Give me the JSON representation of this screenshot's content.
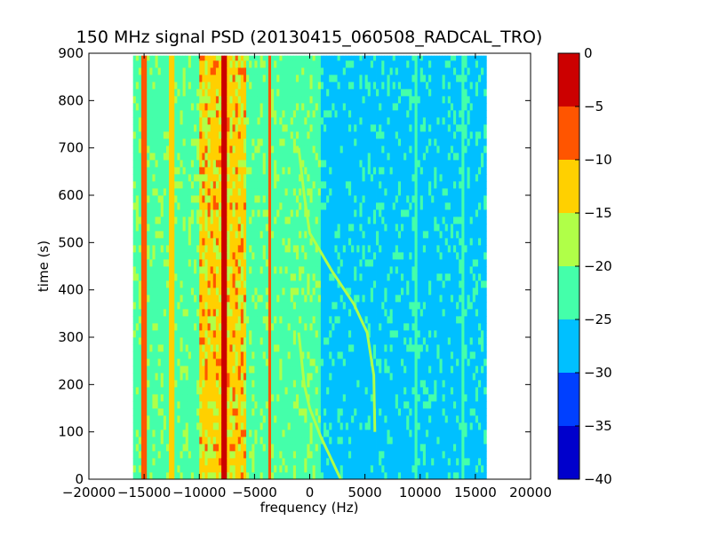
{
  "chart_data": {
    "type": "heatmap",
    "title": "150 MHz signal PSD (20130415_060508_RADCAL_TRO)",
    "xlabel": "frequency (Hz)",
    "ylabel": "time (s)",
    "xlim": [
      -20000,
      20000
    ],
    "ylim": [
      0,
      900
    ],
    "x_ticks": [
      -20000,
      -15000,
      -10000,
      -5000,
      0,
      5000,
      10000,
      15000,
      20000
    ],
    "y_ticks": [
      0,
      100,
      200,
      300,
      400,
      500,
      600,
      700,
      800,
      900
    ],
    "data_extent": {
      "x": [
        -16000,
        16000
      ],
      "y": [
        0,
        895
      ]
    },
    "colorbar": {
      "levels": [
        -40,
        -35,
        -30,
        -25,
        -20,
        -15,
        -10,
        -5,
        0
      ],
      "tick_labels": [
        "−40",
        "−35",
        "−30",
        "−25",
        "−20",
        "−15",
        "−10",
        "−5",
        "0"
      ],
      "colors": [
        "#0000cc",
        "#0040ff",
        "#00c0ff",
        "#44ffaa",
        "#b0ff48",
        "#ffd000",
        "#ff5500",
        "#cc0000"
      ]
    },
    "background_level": {
      "x_from": -16000,
      "x_to": 1000,
      "value": -22,
      "x2_from": 1000,
      "x2_to": 16000,
      "value2": -27
    },
    "features": [
      {
        "name": "carrier",
        "x": -7700,
        "value": -2
      },
      {
        "name": "line",
        "x": -15000,
        "value": -8
      },
      {
        "name": "line",
        "x": -12500,
        "value": -12
      },
      {
        "name": "line",
        "x": -3600,
        "value": -8
      },
      {
        "name": "band",
        "x_from": -10000,
        "x_to": -5800,
        "value": -13
      },
      {
        "name": "line",
        "x": 9600,
        "value": -22
      },
      {
        "name": "line",
        "x": 13900,
        "value": -22
      }
    ],
    "doppler_tracks": [
      {
        "points": [
          [
            -1000,
            700
          ],
          [
            -500,
            600
          ],
          [
            0,
            520
          ],
          [
            2000,
            440
          ],
          [
            4000,
            370
          ],
          [
            5200,
            310
          ],
          [
            5800,
            220
          ],
          [
            5900,
            100
          ]
        ]
      },
      {
        "points": [
          [
            -1000,
            310
          ],
          [
            -500,
            200
          ],
          [
            0,
            150
          ],
          [
            1000,
            90
          ],
          [
            2800,
            0
          ]
        ]
      }
    ]
  }
}
